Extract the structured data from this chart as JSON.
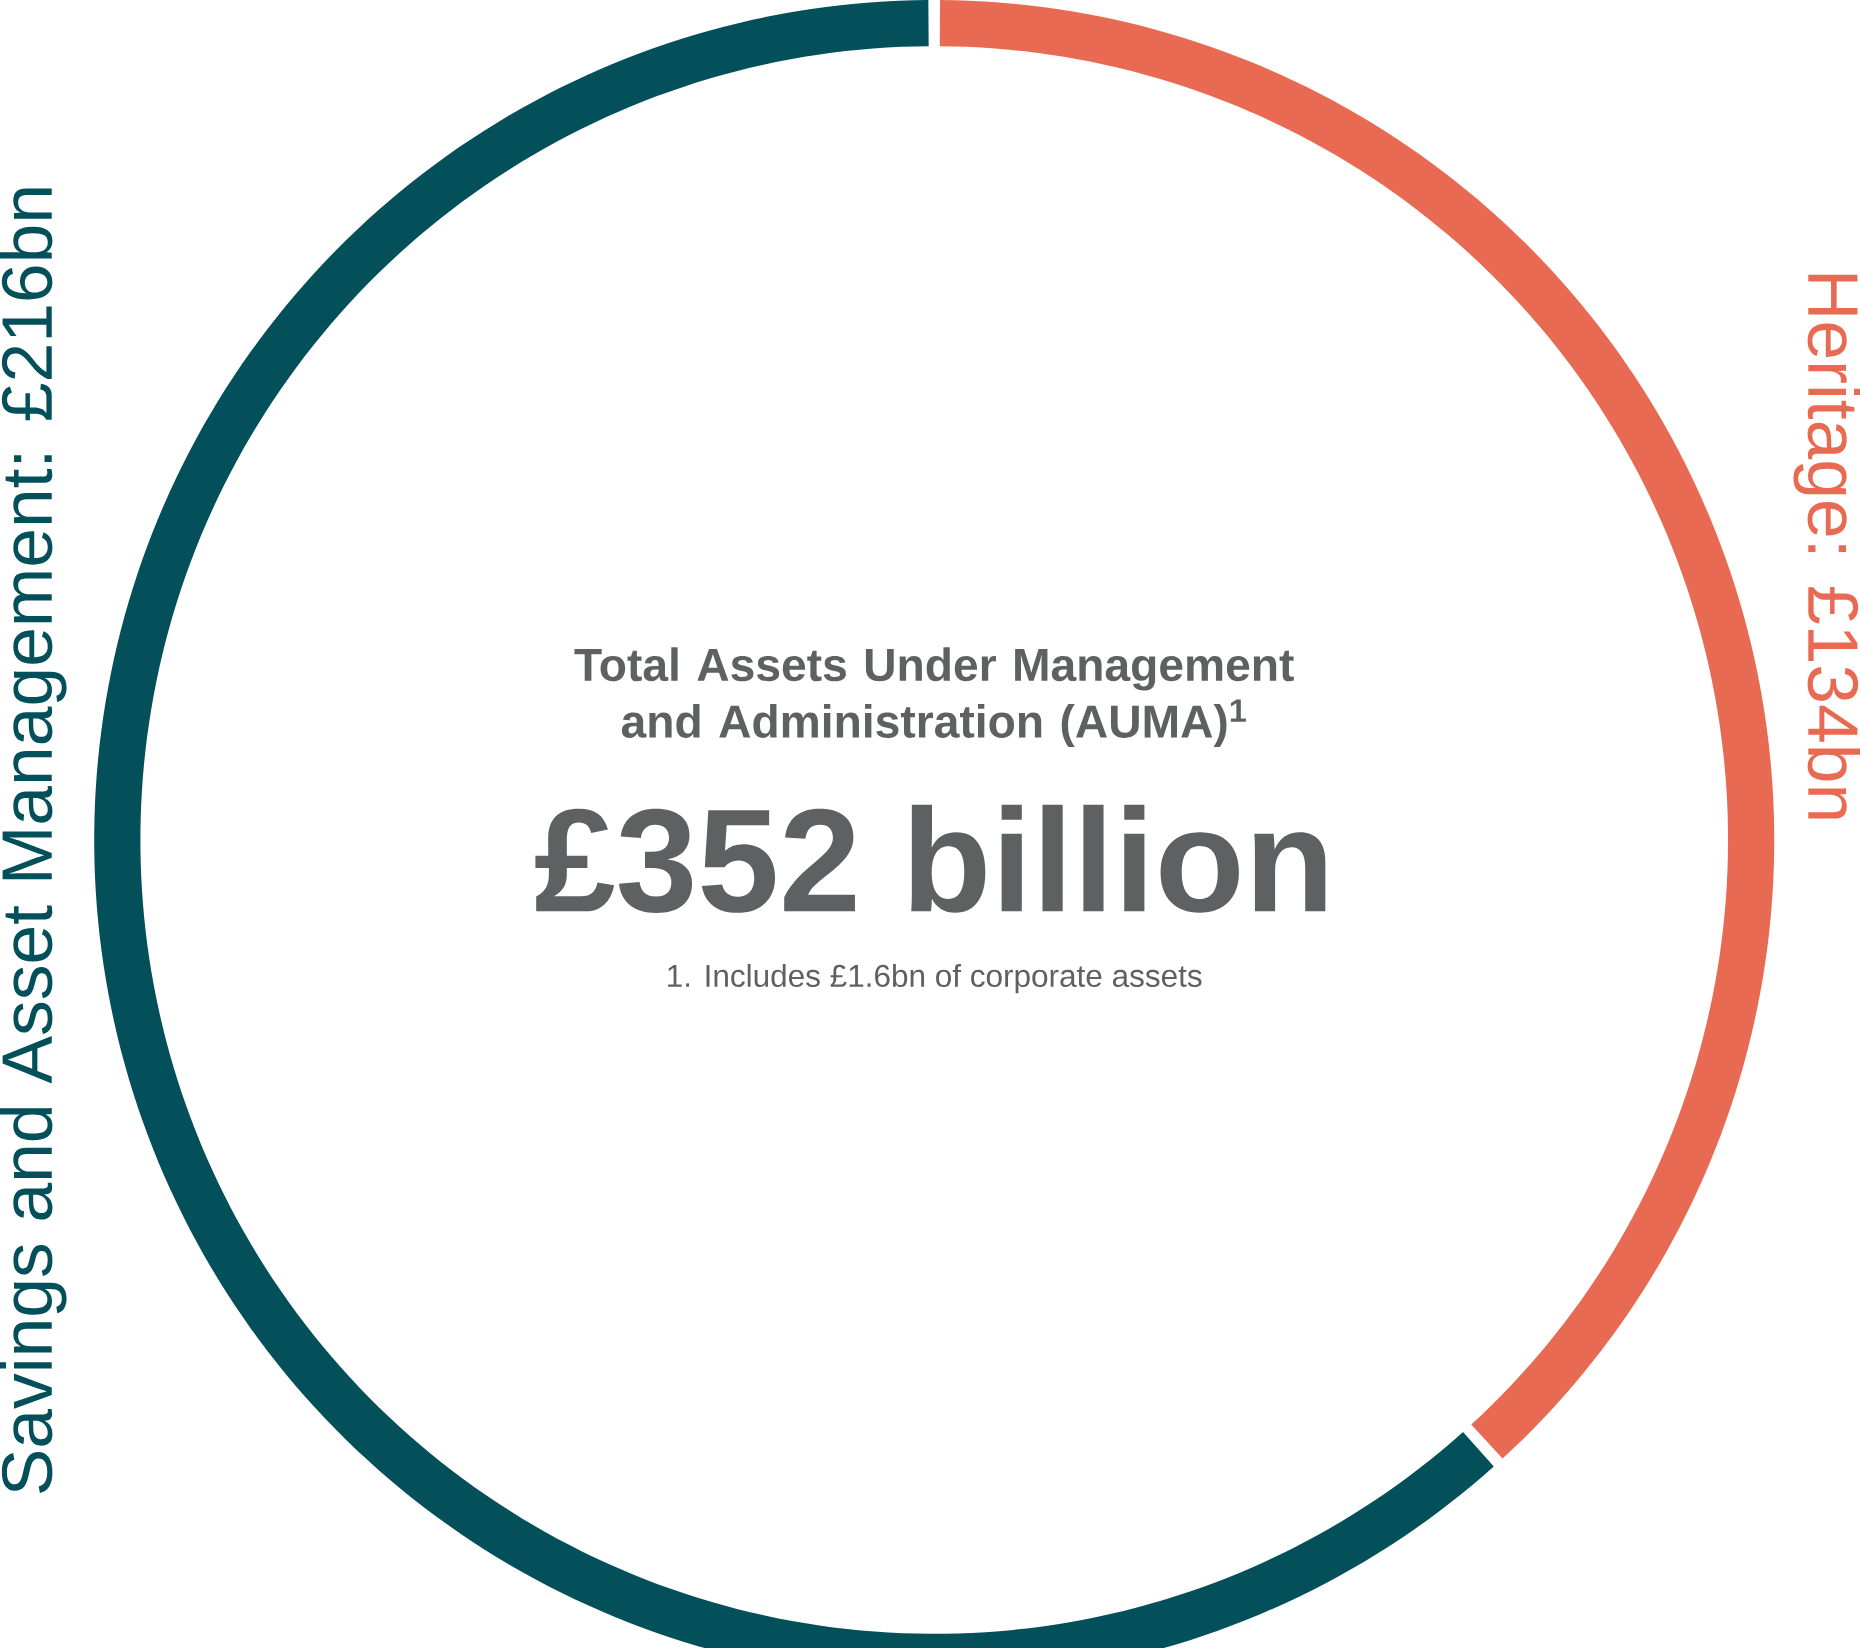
{
  "chart_data": {
    "type": "donut",
    "title": "Total Assets Under Management and Administration (AUMA)$^{1}$",
    "subtitle": "£352 billion",
    "annotations": [
      "1.    Includes £1.6bn of corporate assets"
    ],
    "categories": [
      "Heritage: £134bn",
      "Savings and Asset Management: £216bn"
    ],
    "values": [
      134,
      216
    ],
    "colors": [
      "#e96a52",
      "#03505a"
    ]
  }
}
